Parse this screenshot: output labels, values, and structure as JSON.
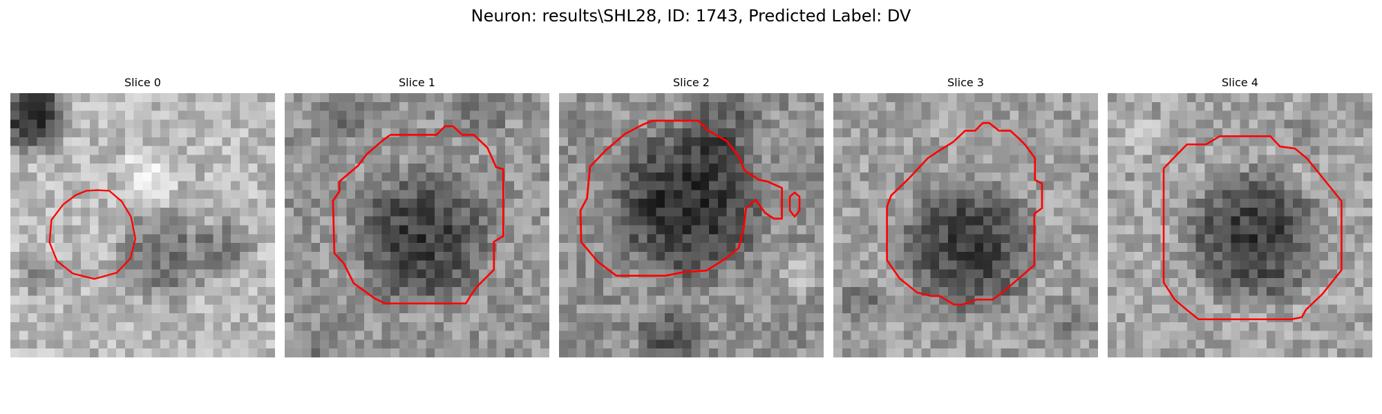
{
  "figure": {
    "title": "Neuron: results\\SHL28, ID: 1743, Predicted Label: DV"
  },
  "overlay_color": "#ff0000",
  "panels": [
    {
      "title": "Slice 0"
    },
    {
      "title": "Slice 1"
    },
    {
      "title": "Slice 2"
    },
    {
      "title": "Slice 3"
    },
    {
      "title": "Slice 4"
    }
  ]
}
